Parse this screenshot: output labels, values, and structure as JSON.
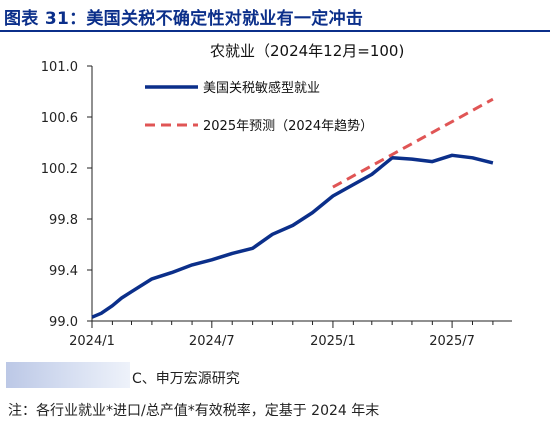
{
  "figure": {
    "title": "图表 31：美国关税不确定性对就业有一定冲击",
    "source": "C、申万宏源研究",
    "note": "注：各行业就业*进口/总产值*有效税率，定基于 2024 年末"
  },
  "colors": {
    "title": "#0b2f8a",
    "actual": "#0b2f8a",
    "forecast": "#e05555",
    "axis": "#222222"
  },
  "chart_data": {
    "type": "line",
    "title": "农就业（2024年12月=100)",
    "xlabel": "",
    "ylabel": "",
    "ylim": [
      99.0,
      101.0
    ],
    "yticks": [
      "99.0",
      "99.4",
      "99.8",
      "100.2",
      "100.6",
      "101.0"
    ],
    "x_tick_labels": [
      "2024/1",
      "2024/7",
      "2025/1",
      "2025/7"
    ],
    "legend_position": "top-right",
    "grid": false,
    "series": [
      {
        "name": "美国关税敏感型就业",
        "style": "solid",
        "x": [
          "2024-01-01",
          "2024-01-15",
          "2024-02-01",
          "2024-02-15",
          "2024-03-01",
          "2024-04-01",
          "2024-05-01",
          "2024-06-01",
          "2024-07-01",
          "2024-08-01",
          "2024-09-01",
          "2024-10-01",
          "2024-11-01",
          "2024-12-01",
          "2025-01-01",
          "2025-02-01",
          "2025-03-01",
          "2025-04-01",
          "2025-05-01",
          "2025-06-01",
          "2025-07-01",
          "2025-08-01",
          "2025-09-01"
        ],
        "y": [
          99.03,
          99.06,
          99.12,
          99.18,
          99.23,
          99.33,
          99.38,
          99.44,
          99.48,
          99.53,
          99.57,
          99.68,
          99.75,
          99.85,
          99.98,
          100.07,
          100.15,
          100.28,
          100.27,
          100.25,
          100.3,
          100.28,
          100.24
        ]
      },
      {
        "name": "2025年预测（2024年趋势）",
        "style": "dashed",
        "x": [
          "2025-01-01",
          "2025-09-01"
        ],
        "y": [
          100.05,
          100.74
        ]
      }
    ]
  }
}
